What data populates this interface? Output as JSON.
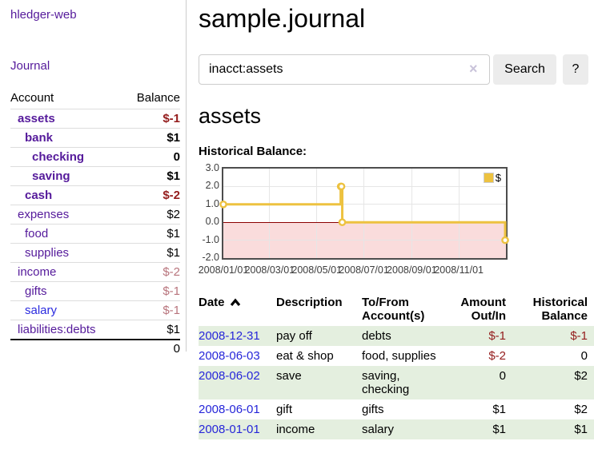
{
  "app": {
    "title": "hledger-web"
  },
  "sidebar": {
    "journal_link": "Journal",
    "accounts_table": {
      "account_header": "Account",
      "balance_header": "Balance",
      "rows": [
        {
          "name": "assets",
          "indent": 1,
          "bold": true,
          "balance": "$-1",
          "balance_style": "neg-strong"
        },
        {
          "name": "bank",
          "indent": 2,
          "bold": true,
          "balance": "$1",
          "balance_style": ""
        },
        {
          "name": "checking",
          "indent": 3,
          "bold": true,
          "balance": "0",
          "balance_style": ""
        },
        {
          "name": "saving",
          "indent": 3,
          "bold": true,
          "balance": "$1",
          "balance_style": ""
        },
        {
          "name": "cash",
          "indent": 2,
          "bold": true,
          "balance": "$-2",
          "balance_style": "neg-strong"
        },
        {
          "name": "expenses",
          "indent": 1,
          "bold": false,
          "balance": "$2",
          "balance_style": ""
        },
        {
          "name": "food",
          "indent": 2,
          "bold": false,
          "balance": "$1",
          "balance_style": ""
        },
        {
          "name": "supplies",
          "indent": 2,
          "bold": false,
          "balance": "$1",
          "balance_style": ""
        },
        {
          "name": "income",
          "indent": 1,
          "bold": false,
          "balance": "$-2",
          "balance_style": "neg-soft"
        },
        {
          "name": "gifts",
          "indent": 2,
          "bold": false,
          "balance": "$-1",
          "balance_style": "neg-soft"
        },
        {
          "name": "salary",
          "indent": 2,
          "bold": false,
          "balance": "$-1",
          "balance_style": "neg-soft",
          "link_blue": true
        },
        {
          "name": "liabilities:debts",
          "indent": 1,
          "bold": false,
          "balance": "$1",
          "balance_style": ""
        }
      ],
      "total": "0"
    }
  },
  "header": {
    "title": "sample.journal"
  },
  "search": {
    "value": "inacct:assets",
    "clear_icon": "×",
    "button_label": "Search",
    "help_label": "?"
  },
  "account_page": {
    "heading": "assets",
    "chart_label": "Historical Balance:"
  },
  "chart_data": {
    "type": "line",
    "title": "Historical Balance",
    "step": true,
    "series": [
      {
        "name": "$",
        "color": "#edc240",
        "points": [
          [
            "2008-01-01",
            1
          ],
          [
            "2008-06-01",
            2
          ],
          [
            "2008-06-02",
            2
          ],
          [
            "2008-06-03",
            0
          ],
          [
            "2008-12-31",
            -1
          ]
        ]
      }
    ],
    "xlim": [
      "2008-01-01",
      "2009-01-01"
    ],
    "ylim": [
      -2,
      3
    ],
    "x_ticks": [
      "2008/01/01",
      "2008/03/01",
      "2008/05/01",
      "2008/07/01",
      "2008/09/01",
      "2008/11/01"
    ],
    "y_ticks": [
      "3.0",
      "2.0",
      "1.0",
      "0.0",
      "-1.0",
      "-2.0"
    ],
    "grid": true,
    "legend_position": "top-right",
    "negative_region_color": "#fadcdc",
    "zero_line_color": "#8b0000"
  },
  "register": {
    "columns": [
      {
        "label": "Date",
        "sorted": "asc"
      },
      {
        "label": "Description"
      },
      {
        "label": "To/From Account(s)"
      },
      {
        "label": "Amount Out/In"
      },
      {
        "label": "Historical Balance"
      }
    ],
    "rows": [
      {
        "date": "2008-12-31",
        "description": "pay off",
        "accounts": "debts",
        "amount": "$-1",
        "amount_style": "neg-strong",
        "balance": "$-1",
        "balance_style": "neg-strong"
      },
      {
        "date": "2008-06-03",
        "description": "eat & shop",
        "accounts": "food, supplies",
        "amount": "$-2",
        "amount_style": "neg-strong",
        "balance": "0",
        "balance_style": ""
      },
      {
        "date": "2008-06-02",
        "description": "save",
        "accounts": "saving, checking",
        "amount": "0",
        "amount_style": "",
        "balance": "$2",
        "balance_style": ""
      },
      {
        "date": "2008-06-01",
        "description": "gift",
        "accounts": "gifts",
        "amount": "$1",
        "amount_style": "",
        "balance": "$2",
        "balance_style": ""
      },
      {
        "date": "2008-01-01",
        "description": "income",
        "accounts": "salary",
        "amount": "$1",
        "amount_style": "",
        "balance": "$1",
        "balance_style": ""
      }
    ]
  }
}
